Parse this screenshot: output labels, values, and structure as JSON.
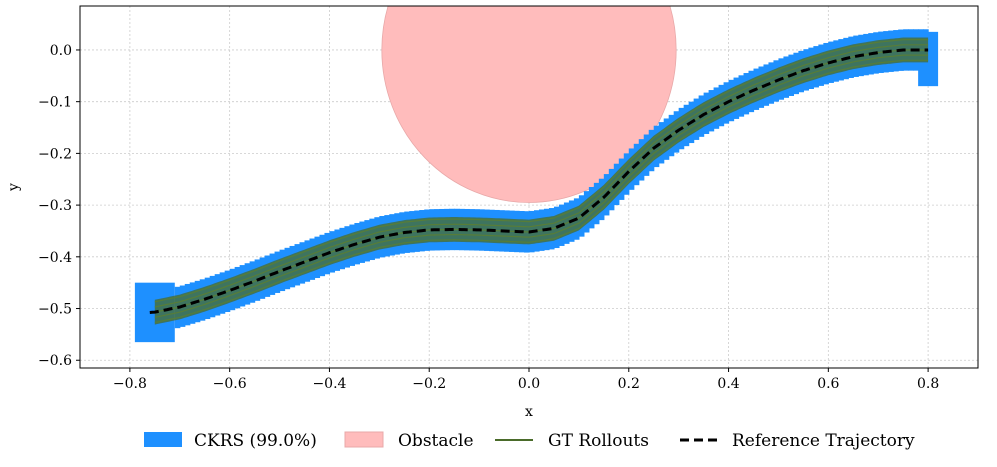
{
  "chart_data": {
    "type": "line",
    "title": "",
    "xlabel": "x",
    "ylabel": "y",
    "xlim": [
      -0.9,
      0.9
    ],
    "ylim": [
      -0.615,
      0.085
    ],
    "grid": true,
    "x_ticks": [
      -0.8,
      -0.6,
      -0.4,
      -0.2,
      0.0,
      0.2,
      0.4,
      0.6,
      0.8
    ],
    "x_tick_labels": [
      "−0.8",
      "−0.6",
      "−0.4",
      "−0.2",
      "0.0",
      "0.2",
      "0.4",
      "0.6",
      "0.8"
    ],
    "y_ticks": [
      0.0,
      -0.1,
      -0.2,
      -0.3,
      -0.4,
      -0.5,
      -0.6
    ],
    "y_tick_labels": [
      "0.0",
      "−0.1",
      "−0.2",
      "−0.3",
      "−0.4",
      "−0.5",
      "−0.6"
    ],
    "obstacle": {
      "center": [
        0.0,
        0.0
      ],
      "radius": 0.295
    },
    "reference_trajectory": {
      "x": [
        -0.8,
        -0.75,
        -0.7,
        -0.65,
        -0.6,
        -0.55,
        -0.5,
        -0.45,
        -0.4,
        -0.35,
        -0.3,
        -0.25,
        -0.2,
        -0.15,
        -0.1,
        -0.05,
        0.0,
        0.05,
        0.1,
        0.15,
        0.2,
        0.25,
        0.3,
        0.35,
        0.4,
        0.45,
        0.5,
        0.55,
        0.6,
        0.65,
        0.7,
        0.75,
        0.8
      ],
      "y": [
        -0.51,
        -0.507,
        -0.497,
        -0.482,
        -0.465,
        -0.447,
        -0.428,
        -0.41,
        -0.392,
        -0.376,
        -0.362,
        -0.353,
        -0.348,
        -0.347,
        -0.348,
        -0.35,
        -0.352,
        -0.345,
        -0.325,
        -0.285,
        -0.235,
        -0.19,
        -0.155,
        -0.125,
        -0.1,
        -0.078,
        -0.058,
        -0.04,
        -0.025,
        -0.013,
        -0.005,
        0.0,
        0.0
      ]
    },
    "ckrs_halfwidth": 0.04,
    "rollout_offsets": [
      -0.02,
      -0.01,
      0.0,
      0.01,
      0.02
    ],
    "legend": [
      {
        "label": "CKRS (99.0%)",
        "color": "#1e90ff",
        "kind": "patch"
      },
      {
        "label": "Obstacle",
        "color": "#ffbcbc",
        "kind": "patch"
      },
      {
        "label": "GT Rollouts",
        "color": "#4a6b2a",
        "kind": "line"
      },
      {
        "label": "Reference Trajectory",
        "color": "#000000",
        "kind": "dashed"
      }
    ],
    "legend_position": "bottom-center"
  }
}
